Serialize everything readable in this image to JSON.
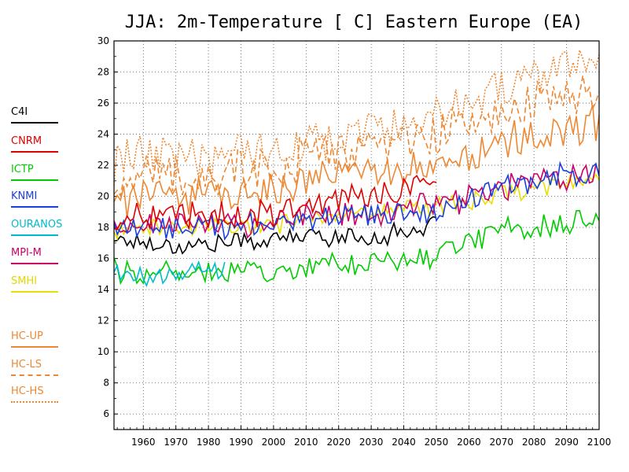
{
  "chart_data": {
    "type": "line",
    "title": "JJA: 2m-Temperature [   C] Eastern Europe (EA)",
    "xlabel": "",
    "ylabel": "",
    "xlim": [
      1951,
      2100
    ],
    "ylim": [
      5,
      30
    ],
    "x_ticks": [
      1960,
      1970,
      1980,
      1990,
      2000,
      2010,
      2020,
      2030,
      2040,
      2050,
      2060,
      2070,
      2080,
      2090,
      2100
    ],
    "y_ticks": [
      6,
      8,
      10,
      12,
      14,
      16,
      18,
      20,
      22,
      24,
      26,
      28,
      30
    ],
    "grid": true,
    "legend_placement": "left outside",
    "series": [
      {
        "name": "C4I",
        "color": "#000000",
        "style": "solid",
        "start": 1951,
        "end": 2050,
        "anchors": [
          [
            1951,
            17.3
          ],
          [
            1970,
            16.8
          ],
          [
            1990,
            17.1
          ],
          [
            2000,
            17.2
          ],
          [
            2010,
            17.5
          ],
          [
            2030,
            17.3
          ],
          [
            2050,
            18.2
          ]
        ],
        "amp": 0.55
      },
      {
        "name": "CNRM",
        "color": "#e00000",
        "style": "solid",
        "start": 1951,
        "end": 2050,
        "anchors": [
          [
            1951,
            18.6
          ],
          [
            1970,
            18.7
          ],
          [
            1990,
            18.8
          ],
          [
            2000,
            18.9
          ],
          [
            2010,
            19.5
          ],
          [
            2030,
            20.0
          ],
          [
            2050,
            21.0
          ]
        ],
        "amp": 0.8
      },
      {
        "name": "ICTP",
        "color": "#00cc00",
        "style": "solid",
        "start": 1951,
        "end": 2100,
        "anchors": [
          [
            1951,
            15.2
          ],
          [
            1970,
            15.0
          ],
          [
            1990,
            15.3
          ],
          [
            2000,
            15.2
          ],
          [
            2010,
            15.5
          ],
          [
            2030,
            15.8
          ],
          [
            2050,
            16.2
          ],
          [
            2060,
            17.2
          ],
          [
            2070,
            17.8
          ],
          [
            2080,
            18.0
          ],
          [
            2090,
            18.2
          ],
          [
            2100,
            18.4
          ]
        ],
        "amp": 0.7
      },
      {
        "name": "KNMI",
        "color": "#1a3fe0",
        "style": "solid",
        "start": 1951,
        "end": 2100,
        "anchors": [
          [
            1951,
            17.8
          ],
          [
            1970,
            18.0
          ],
          [
            1990,
            18.1
          ],
          [
            2000,
            18.2
          ],
          [
            2010,
            18.4
          ],
          [
            2030,
            18.7
          ],
          [
            2050,
            19.0
          ],
          [
            2060,
            19.6
          ],
          [
            2070,
            20.6
          ],
          [
            2080,
            21.0
          ],
          [
            2090,
            21.3
          ],
          [
            2100,
            21.6
          ]
        ],
        "amp": 0.75
      },
      {
        "name": "OURANOS",
        "color": "#00bbcc",
        "style": "solid",
        "start": 1951,
        "end": 1985,
        "anchors": [
          [
            1951,
            15.0
          ],
          [
            1960,
            14.7
          ],
          [
            1970,
            15.0
          ],
          [
            1985,
            15.4
          ]
        ],
        "amp": 0.6
      },
      {
        "name": "MPI-M",
        "color": "#cc0066",
        "style": "solid",
        "start": 1951,
        "end": 2100,
        "anchors": [
          [
            1951,
            18.2
          ],
          [
            1970,
            18.3
          ],
          [
            1990,
            18.3
          ],
          [
            2000,
            18.4
          ],
          [
            2010,
            18.7
          ],
          [
            2030,
            19.0
          ],
          [
            2050,
            19.5
          ],
          [
            2060,
            19.9
          ],
          [
            2070,
            20.5
          ],
          [
            2080,
            21.0
          ],
          [
            2090,
            21.2
          ],
          [
            2100,
            21.5
          ]
        ],
        "amp": 0.8
      },
      {
        "name": "SMHI",
        "color": "#e8e000",
        "style": "solid",
        "start": 1951,
        "end": 2100,
        "anchors": [
          [
            1951,
            17.9
          ],
          [
            1970,
            18.0
          ],
          [
            1990,
            18.1
          ],
          [
            2000,
            18.2
          ],
          [
            2010,
            18.5
          ],
          [
            2030,
            18.9
          ],
          [
            2050,
            19.3
          ],
          [
            2060,
            19.7
          ],
          [
            2070,
            20.2
          ],
          [
            2080,
            20.6
          ],
          [
            2090,
            20.8
          ],
          [
            2100,
            21.0
          ]
        ],
        "amp": 0.6
      },
      {
        "name": "HC-UP",
        "color": "#ee8833",
        "style": "solid",
        "start": 1951,
        "end": 2100,
        "anchors": [
          [
            1951,
            19.8
          ],
          [
            1970,
            20.0
          ],
          [
            1990,
            20.2
          ],
          [
            2000,
            20.5
          ],
          [
            2010,
            21.0
          ],
          [
            2030,
            21.6
          ],
          [
            2050,
            22.3
          ],
          [
            2060,
            22.6
          ],
          [
            2070,
            23.5
          ],
          [
            2080,
            24.0
          ],
          [
            2090,
            24.5
          ],
          [
            2100,
            25.0
          ]
        ],
        "amp": 1.1
      },
      {
        "name": "HC-LS",
        "color": "#ee8833",
        "style": "dashed",
        "start": 1951,
        "end": 2100,
        "anchors": [
          [
            1951,
            21.0
          ],
          [
            1970,
            21.3
          ],
          [
            1990,
            21.6
          ],
          [
            2000,
            21.9
          ],
          [
            2010,
            22.4
          ],
          [
            2030,
            23.2
          ],
          [
            2050,
            23.9
          ],
          [
            2060,
            24.7
          ],
          [
            2070,
            25.5
          ],
          [
            2080,
            26.0
          ],
          [
            2090,
            26.5
          ],
          [
            2100,
            27.0
          ]
        ],
        "amp": 1.3
      },
      {
        "name": "HC-HS",
        "color": "#ee8833",
        "style": "dotted",
        "start": 1951,
        "end": 2100,
        "anchors": [
          [
            1951,
            22.2
          ],
          [
            1970,
            22.5
          ],
          [
            1990,
            22.8
          ],
          [
            2000,
            23.1
          ],
          [
            2010,
            23.6
          ],
          [
            2030,
            24.4
          ],
          [
            2050,
            25.3
          ],
          [
            2060,
            26.2
          ],
          [
            2070,
            27.1
          ],
          [
            2080,
            27.8
          ],
          [
            2090,
            28.4
          ],
          [
            2100,
            29.2
          ]
        ],
        "amp": 1.3
      }
    ]
  }
}
